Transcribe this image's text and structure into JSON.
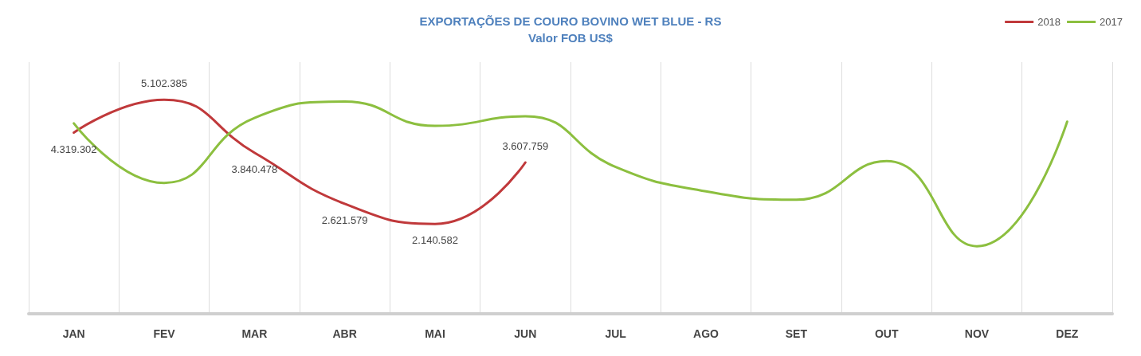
{
  "chart_data": {
    "type": "line",
    "title": "EXPORTAÇÕES DE COURO BOVINO WET BLUE - RS",
    "subtitle": "Valor FOB US$",
    "categories": [
      "JAN",
      "FEV",
      "MAR",
      "ABR",
      "MAI",
      "JUN",
      "JUL",
      "AGO",
      "SET",
      "OUT",
      "NOV",
      "DEZ"
    ],
    "series": [
      {
        "name": "2018",
        "color": "#c0393b",
        "values": [
          4319302,
          5102385,
          3840478,
          2621579,
          2140582,
          3607759,
          null,
          null,
          null,
          null,
          null,
          null
        ],
        "value_labels": [
          "4.319.302",
          "5.102.385",
          "3.840.478",
          "2.621.579",
          "2.140.582",
          "3.607.759",
          null,
          null,
          null,
          null,
          null,
          null
        ]
      },
      {
        "name": "2017",
        "color": "#8cbf3f",
        "values": [
          4540000,
          3120000,
          4670000,
          5060000,
          4480000,
          4710000,
          3500000,
          2920000,
          2720000,
          3640000,
          1610000,
          4580000
        ]
      }
    ],
    "legend": "top right",
    "grid": "x",
    "marker": "none",
    "line_style": "solid"
  }
}
